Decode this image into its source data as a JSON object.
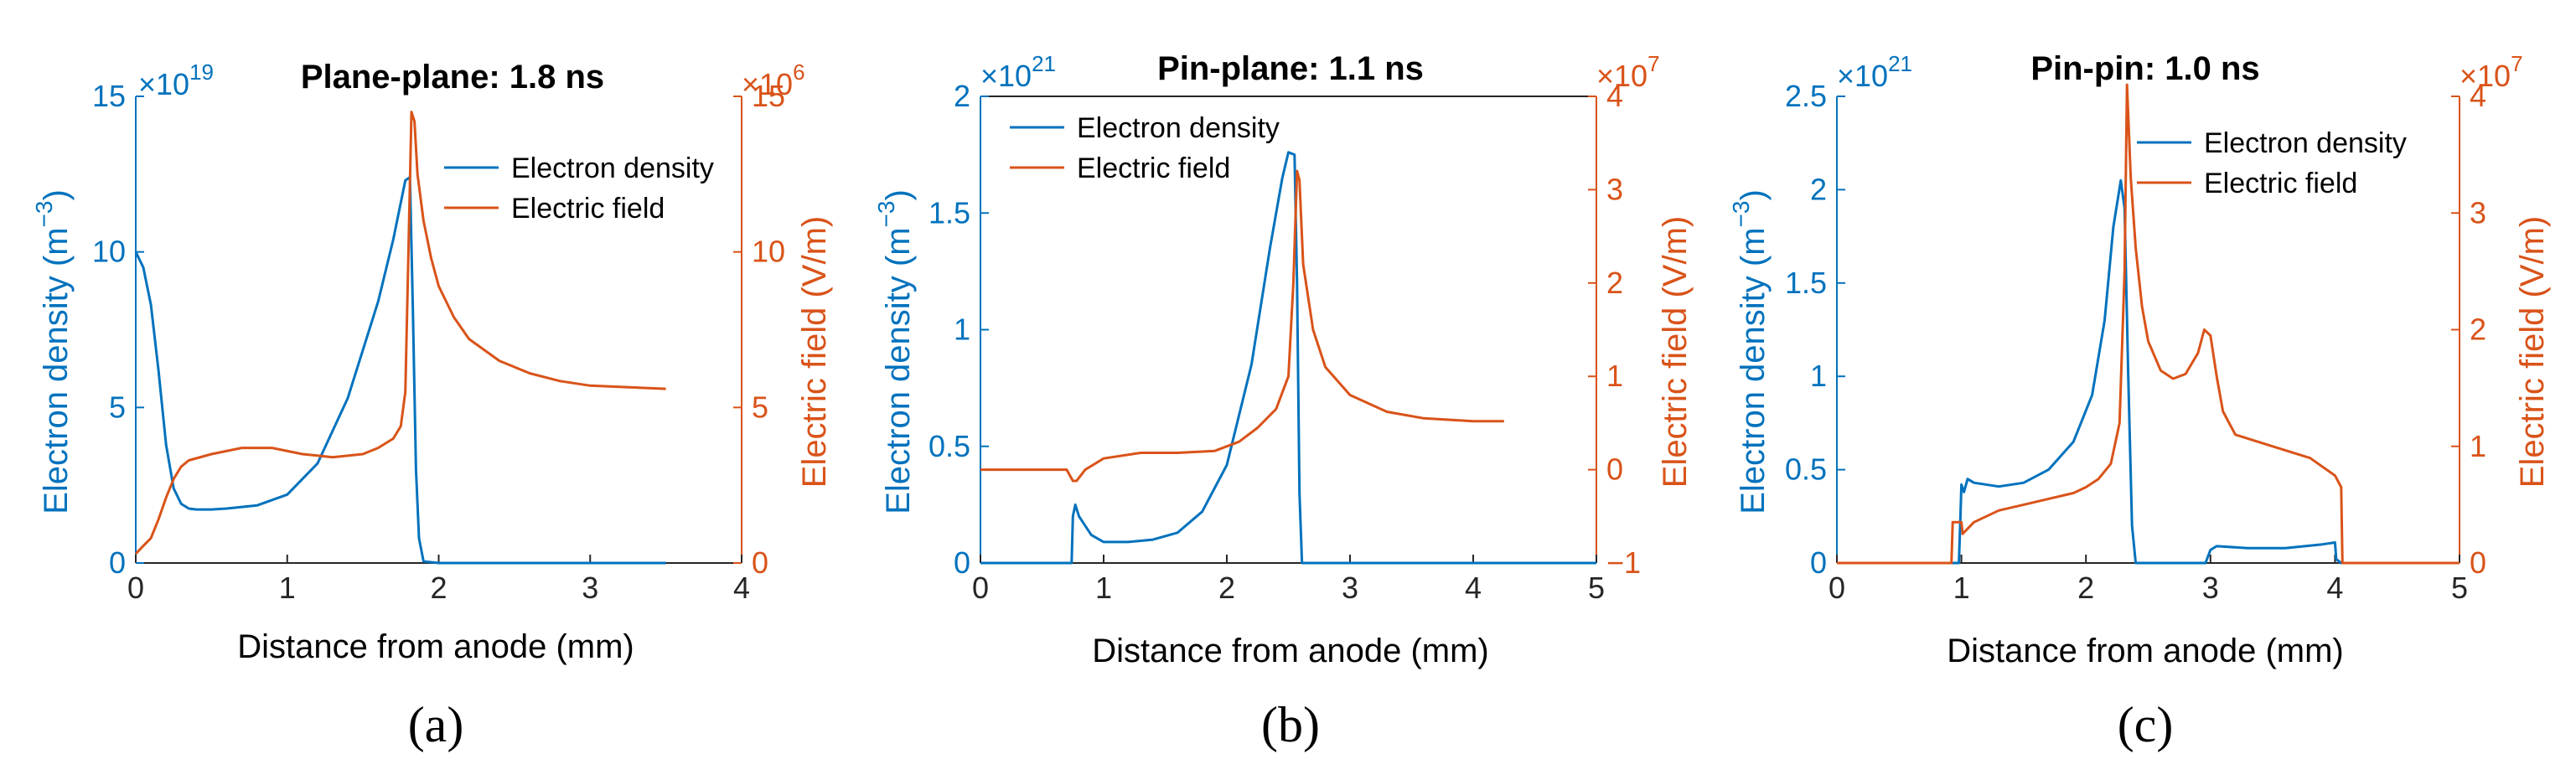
{
  "colors": {
    "density": "#0072BD",
    "field": "#D95319",
    "axis": "#262626"
  },
  "chart_data": [
    {
      "type": "line",
      "panel_label": "(a)",
      "title": "Plane-plane: 1.8 ns",
      "xlabel": "Distance from anode (mm)",
      "ylabel_left": "Electron density (m",
      "ylabel_left_exp": "−3",
      "ylabel_left_close": ")",
      "ylabel_right": "Electric field (V/m)",
      "multiplier_left": "×10",
      "multiplier_left_exp": "19",
      "multiplier_right": "×10",
      "multiplier_right_exp": "6",
      "xlim": [
        0,
        4
      ],
      "ylim_left": [
        0,
        15
      ],
      "ylim_right": [
        0,
        15
      ],
      "xticks": [
        "0",
        "1",
        "2",
        "3",
        "4"
      ],
      "yticks_left": [
        "0",
        "5",
        "10",
        "15"
      ],
      "yticks_right": [
        "0",
        "5",
        "10",
        "15"
      ],
      "legend": [
        "Electron density",
        "Electric field"
      ],
      "series": [
        {
          "name": "Electron density",
          "axis": "left",
          "x": [
            0,
            0.05,
            0.1,
            0.15,
            0.2,
            0.25,
            0.3,
            0.35,
            0.4,
            0.5,
            0.6,
            0.8,
            1.0,
            1.2,
            1.4,
            1.6,
            1.7,
            1.78,
            1.81,
            1.83,
            1.85,
            1.87,
            1.9,
            2.0,
            3.0,
            3.5
          ],
          "values": [
            10,
            9.5,
            8.3,
            6.2,
            3.8,
            2.4,
            1.9,
            1.75,
            1.72,
            1.72,
            1.75,
            1.85,
            2.2,
            3.2,
            5.3,
            8.4,
            10.4,
            12.3,
            12.4,
            8,
            3,
            0.8,
            0.05,
            0,
            0,
            0
          ]
        },
        {
          "name": "Electric field",
          "axis": "right",
          "x": [
            0,
            0.05,
            0.1,
            0.15,
            0.2,
            0.25,
            0.3,
            0.35,
            0.5,
            0.7,
            0.9,
            1.1,
            1.3,
            1.5,
            1.6,
            1.7,
            1.75,
            1.78,
            1.8,
            1.82,
            1.84,
            1.86,
            1.9,
            1.95,
            2.0,
            2.1,
            2.2,
            2.4,
            2.6,
            2.8,
            3.0,
            3.5
          ],
          "values": [
            0.3,
            0.55,
            0.8,
            1.4,
            2.1,
            2.7,
            3.1,
            3.3,
            3.5,
            3.7,
            3.7,
            3.5,
            3.4,
            3.5,
            3.7,
            4.0,
            4.4,
            5.5,
            10,
            14.5,
            14.2,
            12.5,
            11,
            9.8,
            8.9,
            7.9,
            7.2,
            6.5,
            6.1,
            5.85,
            5.7,
            5.6
          ]
        }
      ]
    },
    {
      "type": "line",
      "panel_label": "(b)",
      "title": "Pin-plane: 1.1 ns",
      "xlabel": "Distance from anode (mm)",
      "ylabel_left": "Electron density (m",
      "ylabel_left_exp": "−3",
      "ylabel_left_close": ")",
      "ylabel_right": "Electric field (V/m)",
      "multiplier_left": "×10",
      "multiplier_left_exp": "21",
      "multiplier_right": "×10",
      "multiplier_right_exp": "7",
      "xlim": [
        0,
        5
      ],
      "ylim_left": [
        0,
        2
      ],
      "ylim_right": [
        -1,
        4
      ],
      "xticks": [
        "0",
        "1",
        "2",
        "3",
        "4",
        "5"
      ],
      "yticks_left": [
        "0",
        "0.5",
        "1",
        "1.5",
        "2"
      ],
      "yticks_right": [
        "−1",
        "0",
        "1",
        "2",
        "3",
        "4"
      ],
      "legend": [
        "Electron density",
        "Electric field"
      ],
      "series": [
        {
          "name": "Electron density",
          "axis": "left",
          "x": [
            0,
            0.74,
            0.75,
            0.77,
            0.8,
            0.9,
            1.0,
            1.2,
            1.4,
            1.6,
            1.8,
            2.0,
            2.2,
            2.35,
            2.45,
            2.5,
            2.55,
            2.57,
            2.59,
            2.61,
            3.0,
            4.0,
            5.0
          ],
          "values": [
            0,
            0,
            0.2,
            0.25,
            0.2,
            0.12,
            0.09,
            0.09,
            0.1,
            0.13,
            0.22,
            0.42,
            0.85,
            1.35,
            1.65,
            1.76,
            1.75,
            1.2,
            0.3,
            0,
            0,
            0,
            0
          ]
        },
        {
          "name": "Electric field",
          "axis": "right",
          "x": [
            0,
            0.7,
            0.75,
            0.78,
            0.85,
            1.0,
            1.3,
            1.6,
            1.9,
            2.1,
            2.25,
            2.4,
            2.5,
            2.54,
            2.57,
            2.59,
            2.62,
            2.7,
            2.8,
            3.0,
            3.3,
            3.6,
            4.0,
            4.25
          ],
          "values": [
            0,
            0,
            -0.12,
            -0.12,
            0,
            0.12,
            0.18,
            0.18,
            0.2,
            0.3,
            0.45,
            0.65,
            1.0,
            2.0,
            3.2,
            3.1,
            2.2,
            1.5,
            1.1,
            0.8,
            0.62,
            0.55,
            0.52,
            0.52
          ]
        }
      ]
    },
    {
      "type": "line",
      "panel_label": "(c)",
      "title": "Pin-pin: 1.0 ns",
      "xlabel": "Distance from anode (mm)",
      "ylabel_left": "Electron density (m",
      "ylabel_left_exp": "−3",
      "ylabel_left_close": ")",
      "ylabel_right": "Electric field (V/m)",
      "multiplier_left": "×10",
      "multiplier_left_exp": "21",
      "multiplier_right": "×10",
      "multiplier_right_exp": "7",
      "xlim": [
        0,
        5
      ],
      "ylim_left": [
        0,
        2.5
      ],
      "ylim_right": [
        0,
        4
      ],
      "xticks": [
        "0",
        "1",
        "2",
        "3",
        "4",
        "5"
      ],
      "yticks_left": [
        "0",
        "0.5",
        "1",
        "1.5",
        "2",
        "2.5"
      ],
      "yticks_right": [
        "0",
        "1",
        "2",
        "3",
        "4"
      ],
      "legend": [
        "Electron density",
        "Electric field"
      ],
      "series": [
        {
          "name": "Electron density",
          "axis": "left",
          "x": [
            0,
            0.98,
            0.99,
            1.0,
            1.02,
            1.05,
            1.1,
            1.3,
            1.5,
            1.7,
            1.9,
            2.05,
            2.15,
            2.22,
            2.28,
            2.31,
            2.34,
            2.37,
            2.4,
            2.5,
            2.96,
            3.0,
            3.05,
            3.3,
            3.6,
            3.9,
            4.0,
            4.01,
            4.05,
            5.0
          ],
          "values": [
            0,
            0,
            0.2,
            0.42,
            0.38,
            0.45,
            0.43,
            0.41,
            0.43,
            0.5,
            0.65,
            0.9,
            1.3,
            1.8,
            2.05,
            1.9,
            1.0,
            0.2,
            0,
            0,
            0,
            0.07,
            0.09,
            0.08,
            0.08,
            0.1,
            0.11,
            0.02,
            0,
            0
          ]
        },
        {
          "name": "Electric field",
          "axis": "right",
          "x": [
            0,
            0.92,
            0.93,
            1.0,
            1.01,
            1.1,
            1.3,
            1.5,
            1.7,
            1.9,
            2.0,
            2.1,
            2.2,
            2.27,
            2.31,
            2.33,
            2.36,
            2.4,
            2.45,
            2.5,
            2.6,
            2.7,
            2.8,
            2.9,
            2.95,
            3.0,
            3.05,
            3.1,
            3.2,
            3.5,
            3.8,
            4.0,
            4.05,
            4.06,
            4.1,
            5.0
          ],
          "values": [
            0,
            0,
            0.35,
            0.35,
            0.25,
            0.35,
            0.45,
            0.5,
            0.55,
            0.6,
            0.65,
            0.72,
            0.85,
            1.2,
            2.5,
            4.1,
            3.3,
            2.7,
            2.2,
            1.9,
            1.65,
            1.58,
            1.62,
            1.8,
            2.0,
            1.95,
            1.6,
            1.3,
            1.1,
            1.0,
            0.9,
            0.75,
            0.65,
            0,
            0,
            0
          ]
        }
      ]
    }
  ]
}
